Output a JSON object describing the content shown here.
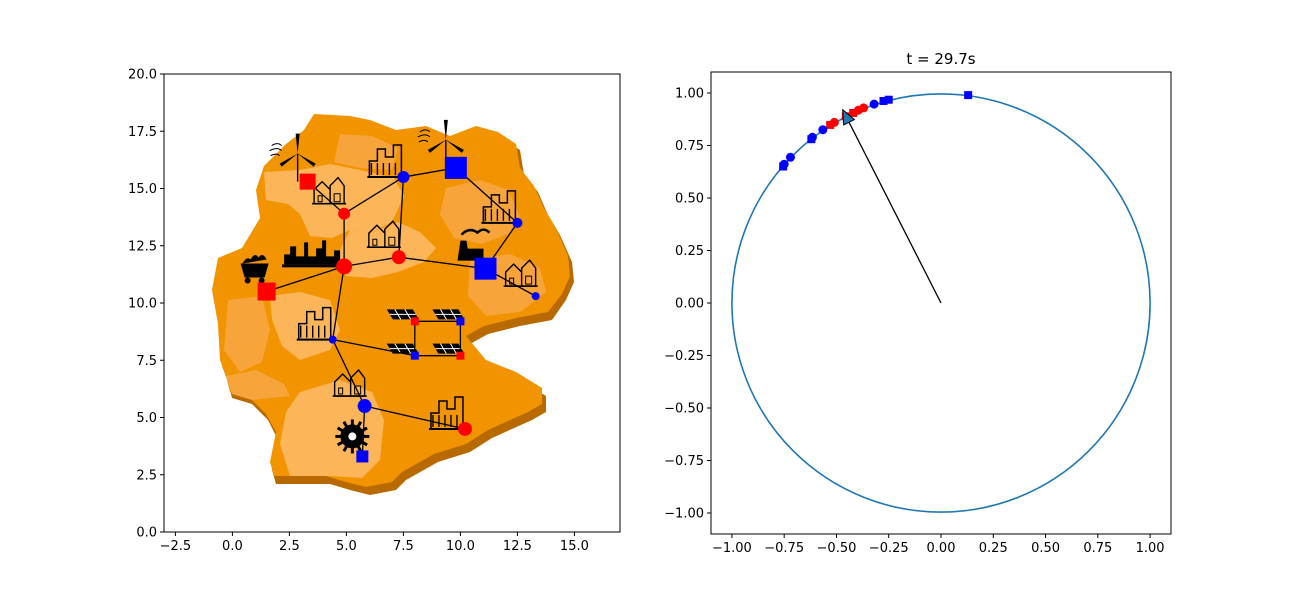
{
  "colors": {
    "red": "#ff0000",
    "blue": "#0000ff",
    "circle": "#1f77b4",
    "map_light": "#fdb55a",
    "map_mid": "#f89a1a",
    "map_dark": "#f08a00",
    "map_edge": "#b86a00",
    "arrow_head": "#1f77b4"
  },
  "chart_data": [
    {
      "type": "network-map",
      "title": "",
      "xlim": [
        -3.0,
        17.0
      ],
      "ylim": [
        0.0,
        20.0
      ],
      "x_ticks": [
        -2.5,
        0.0,
        2.5,
        5.0,
        7.5,
        10.0,
        12.5,
        15.0
      ],
      "x_tick_labels": [
        "−2.5",
        "0.0",
        "2.5",
        "5.0",
        "7.5",
        "10.0",
        "12.5",
        "15.0"
      ],
      "y_ticks": [
        0.0,
        2.5,
        5.0,
        7.5,
        10.0,
        12.5,
        15.0,
        17.5,
        20.0
      ],
      "y_tick_labels": [
        "0.0",
        "2.5",
        "5.0",
        "7.5",
        "10.0",
        "12.5",
        "15.0",
        "17.5",
        "20.0"
      ],
      "nodes": [
        {
          "id": 0,
          "x": 3.3,
          "y": 15.3,
          "color": "red",
          "marker": "square",
          "size": 8,
          "icon": "wind-turbine-icon"
        },
        {
          "id": 1,
          "x": 9.8,
          "y": 15.9,
          "color": "blue",
          "marker": "square",
          "size": 11,
          "icon": "wind-turbine-icon"
        },
        {
          "id": 2,
          "x": 7.5,
          "y": 15.5,
          "color": "blue",
          "marker": "circle",
          "size": 6,
          "icon": "city-icon"
        },
        {
          "id": 3,
          "x": 4.9,
          "y": 13.9,
          "color": "red",
          "marker": "circle",
          "size": 6,
          "icon": "town-icon"
        },
        {
          "id": 4,
          "x": 12.5,
          "y": 13.5,
          "color": "blue",
          "marker": "circle",
          "size": 5,
          "icon": "city-icon"
        },
        {
          "id": 5,
          "x": 7.3,
          "y": 12.0,
          "color": "red",
          "marker": "circle",
          "size": 7,
          "icon": "town-icon"
        },
        {
          "id": 6,
          "x": 4.9,
          "y": 11.6,
          "color": "red",
          "marker": "circle",
          "size": 8,
          "icon": "skyline-icon"
        },
        {
          "id": 7,
          "x": 11.1,
          "y": 11.5,
          "color": "blue",
          "marker": "square",
          "size": 11,
          "icon": "power-plant-icon"
        },
        {
          "id": 8,
          "x": 1.5,
          "y": 10.5,
          "color": "red",
          "marker": "square",
          "size": 9,
          "icon": "coal-cart-icon"
        },
        {
          "id": 9,
          "x": 13.3,
          "y": 10.3,
          "color": "blue",
          "marker": "circle",
          "size": 4,
          "icon": "town-icon"
        },
        {
          "id": 10,
          "x": 8.0,
          "y": 9.2,
          "color": "red",
          "marker": "square",
          "size": 4,
          "icon": "solar-panel-icon"
        },
        {
          "id": 11,
          "x": 10.0,
          "y": 9.2,
          "color": "blue",
          "marker": "square",
          "size": 4,
          "icon": "solar-panel-icon"
        },
        {
          "id": 12,
          "x": 4.4,
          "y": 8.4,
          "color": "blue",
          "marker": "circle",
          "size": 4,
          "icon": "city-icon"
        },
        {
          "id": 13,
          "x": 8.0,
          "y": 7.7,
          "color": "blue",
          "marker": "square",
          "size": 4,
          "icon": "solar-panel-icon"
        },
        {
          "id": 14,
          "x": 10.0,
          "y": 7.7,
          "color": "red",
          "marker": "square",
          "size": 4,
          "icon": "solar-panel-icon"
        },
        {
          "id": 15,
          "x": 5.8,
          "y": 5.5,
          "color": "blue",
          "marker": "circle",
          "size": 7,
          "icon": "town-icon"
        },
        {
          "id": 16,
          "x": 10.2,
          "y": 4.5,
          "color": "red",
          "marker": "circle",
          "size": 7,
          "icon": "city-icon"
        },
        {
          "id": 17,
          "x": 5.7,
          "y": 3.3,
          "color": "blue",
          "marker": "square",
          "size": 6,
          "icon": "hydro-wheel-icon"
        }
      ],
      "edges": [
        [
          0,
          3
        ],
        [
          3,
          2
        ],
        [
          2,
          1
        ],
        [
          1,
          4
        ],
        [
          2,
          5
        ],
        [
          3,
          6
        ],
        [
          6,
          5
        ],
        [
          5,
          7
        ],
        [
          4,
          7
        ],
        [
          7,
          9
        ],
        [
          8,
          6
        ],
        [
          6,
          12
        ],
        [
          12,
          15
        ],
        [
          15,
          16
        ],
        [
          15,
          17
        ],
        [
          10,
          11
        ],
        [
          11,
          14
        ],
        [
          14,
          13
        ],
        [
          13,
          10
        ],
        [
          13,
          12
        ]
      ]
    },
    {
      "type": "scatter",
      "title": "t = 29.7s",
      "xlim": [
        -1.1,
        1.1
      ],
      "ylim": [
        -1.1,
        1.1
      ],
      "x_ticks": [
        -1.0,
        -0.75,
        -0.5,
        -0.25,
        0.0,
        0.25,
        0.5,
        0.75,
        1.0
      ],
      "x_tick_labels": [
        "−1.00",
        "−0.75",
        "−0.50",
        "−0.25",
        "0.00",
        "0.25",
        "0.50",
        "0.75",
        "1.00"
      ],
      "y_ticks": [
        -1.0,
        -0.75,
        -0.5,
        -0.25,
        0.0,
        0.25,
        0.5,
        0.75,
        1.0
      ],
      "y_tick_labels": [
        "−1.00",
        "−0.75",
        "−0.50",
        "−0.25",
        "0.00",
        "0.25",
        "0.50",
        "0.75",
        "1.00"
      ],
      "unit_circle": {
        "cx": 0.0,
        "cy": 0.0,
        "r": 1.0
      },
      "arrow": {
        "x0": 0.0,
        "y0": 0.0,
        "x1": -0.47,
        "y1": 0.92
      },
      "points": [
        {
          "x": 0.13,
          "y": 0.99,
          "color": "blue",
          "marker": "square"
        },
        {
          "x": -0.25,
          "y": 0.968,
          "color": "blue",
          "marker": "square"
        },
        {
          "x": -0.275,
          "y": 0.962,
          "color": "blue",
          "marker": "square"
        },
        {
          "x": -0.32,
          "y": 0.947,
          "color": "blue",
          "marker": "circle"
        },
        {
          "x": -0.37,
          "y": 0.929,
          "color": "red",
          "marker": "circle"
        },
        {
          "x": -0.395,
          "y": 0.918,
          "color": "red",
          "marker": "circle"
        },
        {
          "x": -0.42,
          "y": 0.905,
          "color": "red",
          "marker": "square"
        },
        {
          "x": -0.455,
          "y": 0.889,
          "color": "red",
          "marker": "square"
        },
        {
          "x": -0.51,
          "y": 0.86,
          "color": "red",
          "marker": "circle"
        },
        {
          "x": -0.53,
          "y": 0.848,
          "color": "red",
          "marker": "square"
        },
        {
          "x": -0.565,
          "y": 0.825,
          "color": "blue",
          "marker": "circle"
        },
        {
          "x": -0.615,
          "y": 0.789,
          "color": "blue",
          "marker": "circle"
        },
        {
          "x": -0.62,
          "y": 0.78,
          "color": "blue",
          "marker": "square"
        },
        {
          "x": -0.72,
          "y": 0.694,
          "color": "blue",
          "marker": "circle"
        },
        {
          "x": -0.75,
          "y": 0.661,
          "color": "blue",
          "marker": "circle"
        },
        {
          "x": -0.755,
          "y": 0.65,
          "color": "blue",
          "marker": "square"
        }
      ]
    }
  ]
}
